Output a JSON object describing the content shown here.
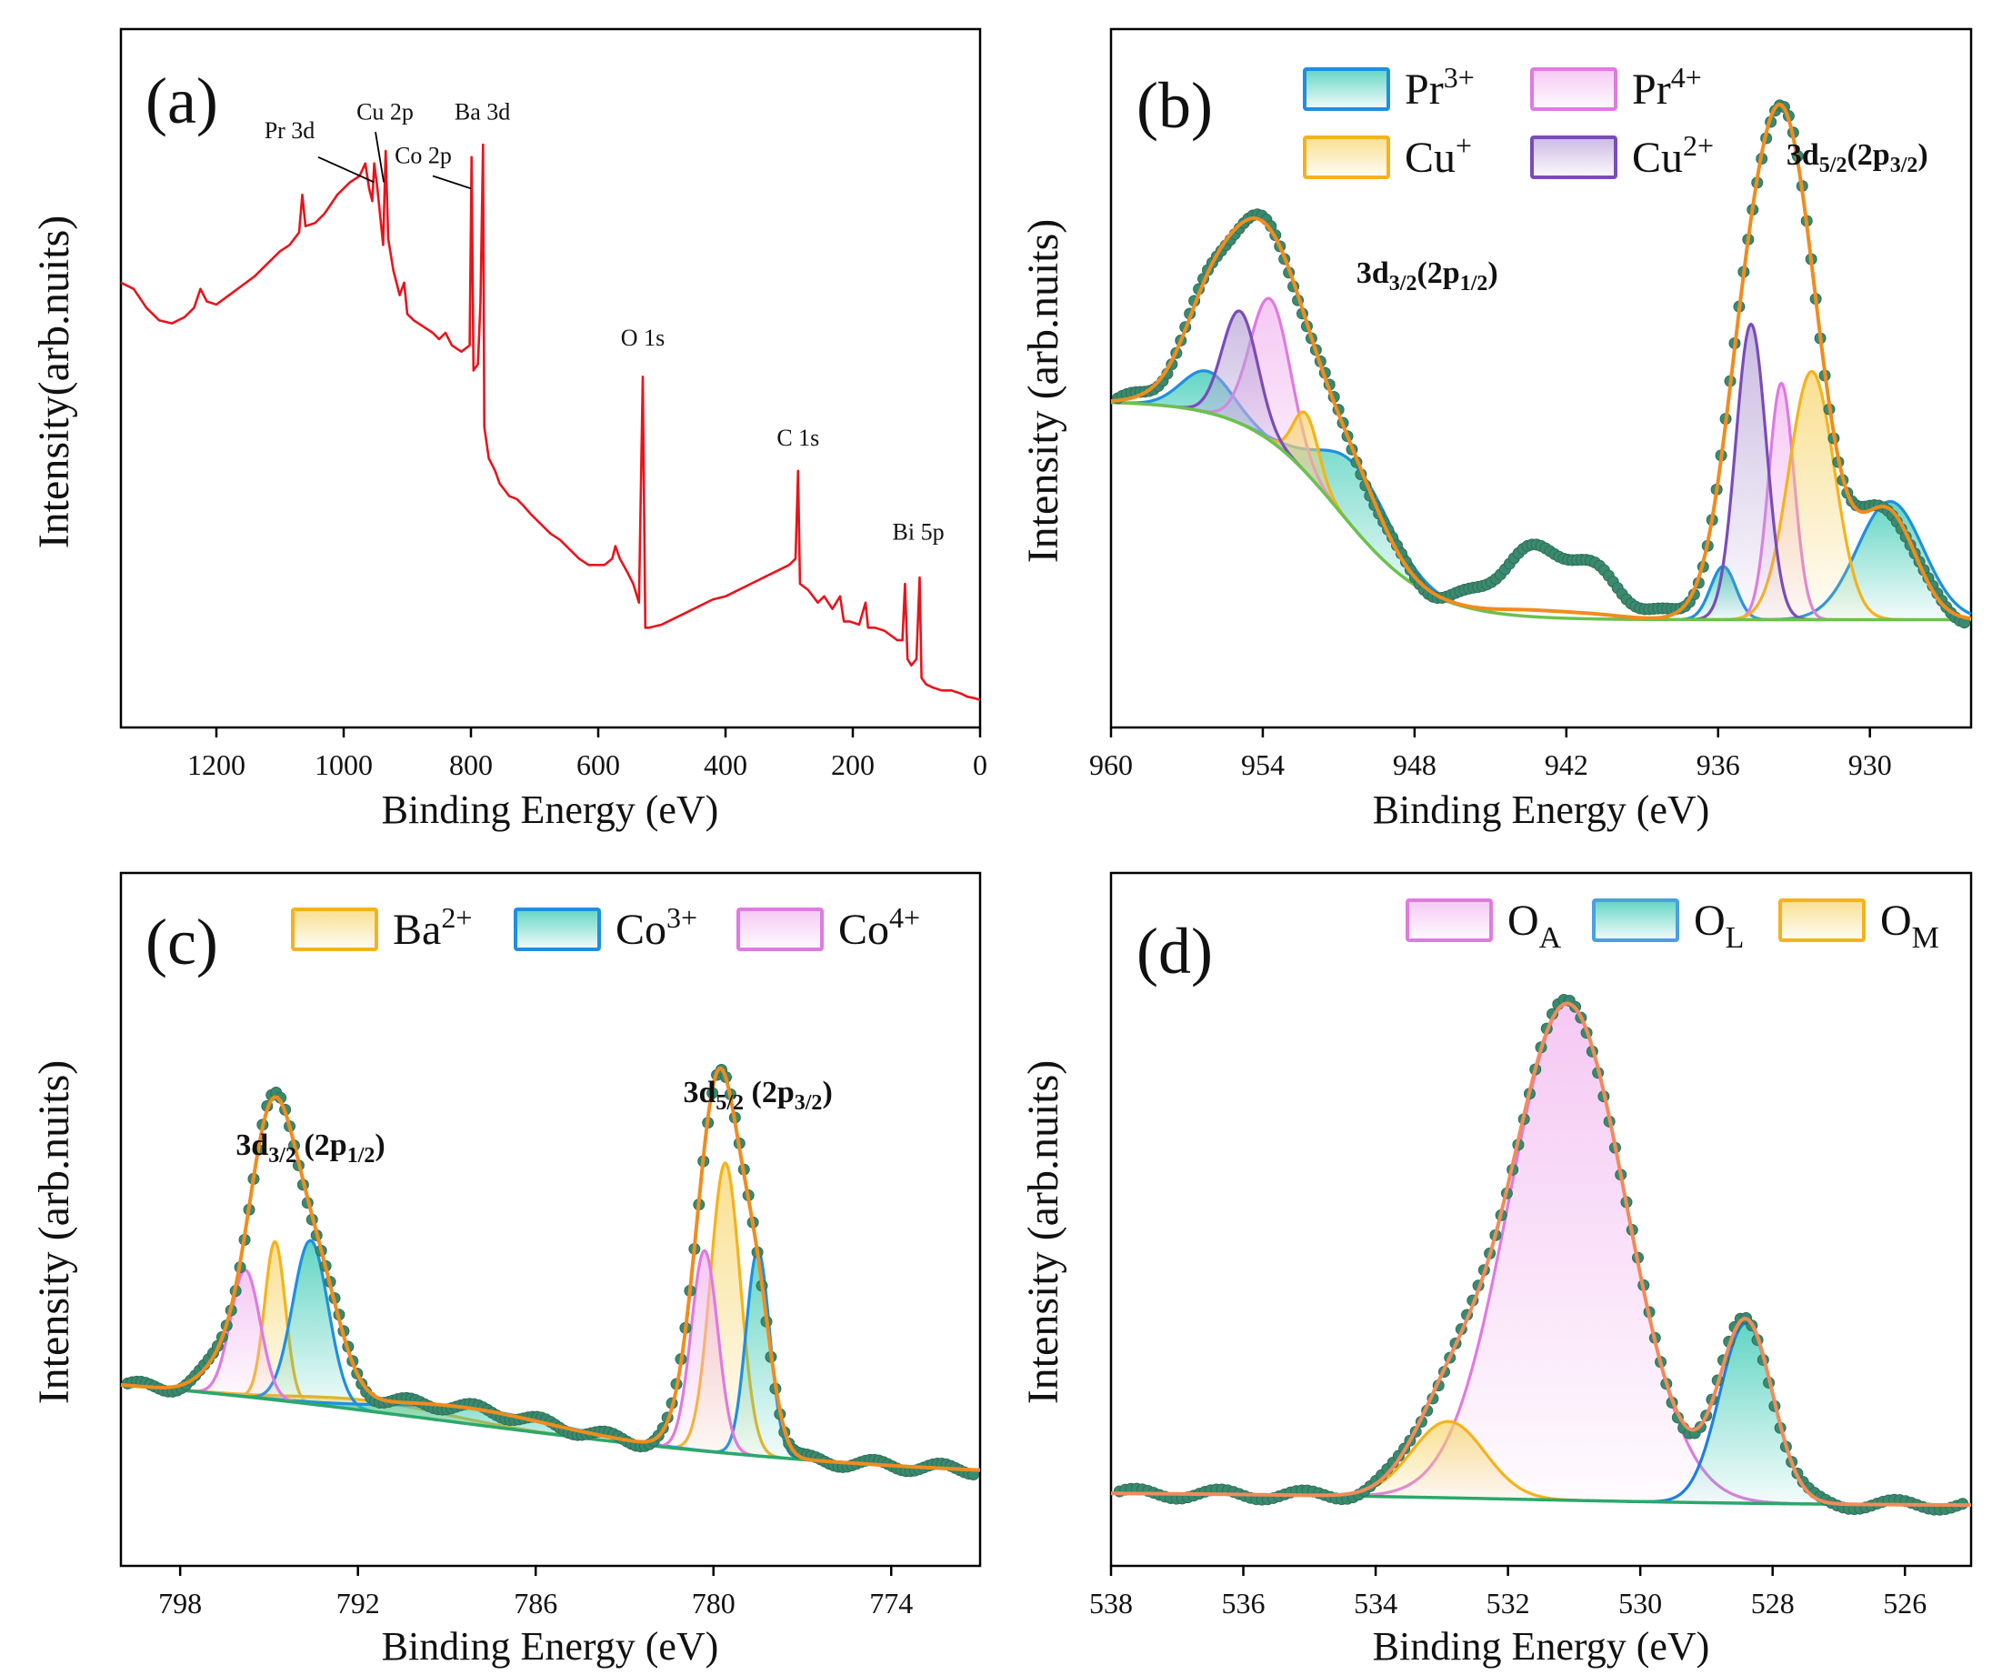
{
  "chart_data": [
    {
      "id": "a",
      "type": "line",
      "panel_label": "(a)",
      "xlabel": "Binding Energy (eV)",
      "ylabel": "Intensity(arb.nuits)",
      "xlim": [
        1350,
        0
      ],
      "ylim": [
        0,
        100
      ],
      "xticks": [
        1200,
        1000,
        800,
        600,
        400,
        200,
        0
      ],
      "series": [
        {
          "color": "#e8141c",
          "points": [
            [
              1350,
              68
            ],
            [
              1330,
              67
            ],
            [
              1310,
              64
            ],
            [
              1290,
              62
            ],
            [
              1270,
              61.5
            ],
            [
              1250,
              62.5
            ],
            [
              1235,
              64
            ],
            [
              1225,
              67
            ],
            [
              1215,
              65
            ],
            [
              1200,
              64.5
            ],
            [
              1180,
              66
            ],
            [
              1160,
              67.5
            ],
            [
              1140,
              69
            ],
            [
              1120,
              71
            ],
            [
              1100,
              73
            ],
            [
              1085,
              74
            ],
            [
              1070,
              76
            ],
            [
              1065,
              82
            ],
            [
              1060,
              77
            ],
            [
              1045,
              77.5
            ],
            [
              1030,
              79
            ],
            [
              1010,
              82
            ],
            [
              990,
              84
            ],
            [
              975,
              85
            ],
            [
              966,
              87
            ],
            [
              960,
              83
            ],
            [
              955,
              81
            ],
            [
              952,
              87
            ],
            [
              947,
              83
            ],
            [
              942,
              78
            ],
            [
              938,
              74
            ],
            [
              934,
              89
            ],
            [
              930,
              75
            ],
            [
              922,
              70
            ],
            [
              912,
              66
            ],
            [
              905,
              68
            ],
            [
              900,
              63
            ],
            [
              890,
              62
            ],
            [
              875,
              61
            ],
            [
              860,
              60
            ],
            [
              850,
              59
            ],
            [
              840,
              60
            ],
            [
              830,
              58
            ],
            [
              815,
              57
            ],
            [
              802,
              58
            ],
            [
              799,
              88
            ],
            [
              796,
              54
            ],
            [
              789,
              55
            ],
            [
              785,
              65
            ],
            [
              781,
              90
            ],
            [
              779,
              45
            ],
            [
              772,
              40
            ],
            [
              762,
              38
            ],
            [
              755,
              36
            ],
            [
              740,
              34
            ],
            [
              728,
              33.5
            ],
            [
              718,
              32.5
            ],
            [
              705,
              31
            ],
            [
              695,
              30
            ],
            [
              675,
              28
            ],
            [
              660,
              27
            ],
            [
              645,
              25.5
            ],
            [
              630,
              24
            ],
            [
              615,
              23
            ],
            [
              600,
              23
            ],
            [
              590,
              23
            ],
            [
              578,
              24
            ],
            [
              573,
              26
            ],
            [
              566,
              24
            ],
            [
              555,
              22
            ],
            [
              545,
              20
            ],
            [
              536,
              17
            ],
            [
              530,
              53
            ],
            [
              526,
              13
            ],
            [
              520,
              13
            ],
            [
              500,
              13.5
            ],
            [
              480,
              14.5
            ],
            [
              460,
              15.5
            ],
            [
              440,
              16.5
            ],
            [
              420,
              17.5
            ],
            [
              400,
              18
            ],
            [
              380,
              19
            ],
            [
              360,
              20
            ],
            [
              340,
              21
            ],
            [
              320,
              22
            ],
            [
              300,
              23
            ],
            [
              290,
              24
            ],
            [
              286,
              38
            ],
            [
              283,
              20
            ],
            [
              270,
              19
            ],
            [
              255,
              17
            ],
            [
              245,
              18
            ],
            [
              232,
              16
            ],
            [
              220,
              18
            ],
            [
              214,
              14
            ],
            [
              205,
              14
            ],
            [
              190,
              13.5
            ],
            [
              180,
              17
            ],
            [
              176,
              13
            ],
            [
              165,
              13
            ],
            [
              150,
              12.5
            ],
            [
              130,
              11
            ],
            [
              122,
              11
            ],
            [
              118,
              20
            ],
            [
              114,
              8
            ],
            [
              108,
              7
            ],
            [
              100,
              8
            ],
            [
              95,
              21
            ],
            [
              92,
              5
            ],
            [
              85,
              4
            ],
            [
              75,
              3.5
            ],
            [
              60,
              3
            ],
            [
              45,
              3
            ],
            [
              30,
              2.5
            ],
            [
              20,
              2
            ],
            [
              10,
              1.8
            ],
            [
              0,
              1.5
            ]
          ]
        }
      ],
      "annotations": [
        {
          "text": "Pr 3d",
          "x": 1085,
          "y": 91
        },
        {
          "text": "Cu 2p",
          "x": 935,
          "y": 94
        },
        {
          "text": "Co 2p",
          "x": 875,
          "y": 87
        },
        {
          "text": "Ba 3d",
          "x": 782,
          "y": 94
        },
        {
          "text": "O 1s",
          "x": 530,
          "y": 58
        },
        {
          "text": "C 1s",
          "x": 286,
          "y": 42
        },
        {
          "text": "Bi 5p",
          "x": 97,
          "y": 27
        }
      ]
    },
    {
      "id": "b",
      "type": "line",
      "panel_label": "(b)",
      "xlabel": "Binding Energy (eV)",
      "ylabel": "Intensity (arb.nuits)",
      "xlim": [
        960,
        926
      ],
      "ylim": [
        0,
        100
      ],
      "xticks": [
        960,
        954,
        948,
        942,
        936,
        930
      ],
      "legend_position": "top",
      "legend": [
        {
          "label": "Pr",
          "sup": "3+",
          "stroke": "#1f8fe0",
          "fill": "#2ec7b0"
        },
        {
          "label": "Pr",
          "sup": "4+",
          "stroke": "#e07ae0",
          "fill": "#f2b6f0"
        },
        {
          "label": "Cu",
          "sup": "+",
          "stroke": "#f5b21c",
          "fill": "#f7d56b"
        },
        {
          "label": "Cu",
          "sup": "2+",
          "stroke": "#7a4cb8",
          "fill": "#b9a4d8"
        }
      ],
      "annotations": [
        {
          "main": "3d",
          "sub": "5/2",
          "main2": "(2p",
          "sub2": "3/2",
          "end": ")",
          "x": 930.5,
          "y": 86
        },
        {
          "main": "3d",
          "sub": "3/2",
          "main2": "(2p",
          "sub2": "1/2",
          "end": ")",
          "x": 947.5,
          "y": 66
        }
      ],
      "baseline": {
        "color": "#6ac24b",
        "low": 9,
        "high": 46,
        "center": 951,
        "width": 1.8
      },
      "components": [
        {
          "name": "Pr3+",
          "stroke": "#1f8fe0",
          "fill": "#2ec7b0",
          "peaks": [
            [
              956.2,
              7,
              1.0
            ],
            [
              950.3,
              11,
              1.4
            ],
            [
              935.8,
              9,
              0.5
            ],
            [
              929.2,
              20,
              1.3
            ]
          ]
        },
        {
          "name": "Pr4+",
          "stroke": "#e07ae0",
          "fill": "#f2b6f0",
          "peaks": [
            [
              953.7,
              24,
              0.8
            ],
            [
              933.5,
              40,
              0.5
            ]
          ]
        },
        {
          "name": "Cu+",
          "stroke": "#f5b21c",
          "fill": "#f7d56b",
          "peaks": [
            [
              952.3,
              10,
              0.5
            ],
            [
              932.3,
              42,
              0.9
            ]
          ]
        },
        {
          "name": "Cu2+",
          "stroke": "#7a4cb8",
          "fill": "#b9a4d8",
          "peaks": [
            [
              954.9,
              19,
              0.7
            ],
            [
              934.7,
              50,
              0.6
            ]
          ]
        }
      ],
      "envelope": {
        "color": "#f08c1e",
        "peaks": [
          [
            954.0,
            36,
            1.9
          ],
          [
            950.3,
            7,
            1.2
          ],
          [
            933.5,
            86,
            1.4
          ],
          [
            935.2,
            10,
            0.8
          ],
          [
            929.3,
            18,
            1.1
          ],
          [
            956.3,
            5,
            0.9
          ]
        ]
      },
      "raw": {
        "color": "#3a8a6e",
        "extra": [
          [
            943.5,
            10,
            1.4
          ],
          [
            941.0,
            7,
            1.3
          ]
        ]
      }
    },
    {
      "id": "c",
      "type": "line",
      "panel_label": "(c)",
      "xlabel": "Binding Energy (eV)",
      "ylabel": "Intensity (arb.nuits)",
      "xlim": [
        800,
        771
      ],
      "ylim": [
        0,
        100
      ],
      "xticks": [
        798,
        792,
        786,
        780,
        774
      ],
      "legend_position": "top",
      "legend": [
        {
          "label": "Ba",
          "sup": "2+",
          "stroke": "#f5b21c",
          "fill": "#f7d56b"
        },
        {
          "label": "Co",
          "sup": "3+",
          "stroke": "#1f8fe0",
          "fill": "#2ec7b0"
        },
        {
          "label": "Co",
          "sup": "4+",
          "stroke": "#e07ae0",
          "fill": "#f2b6f0"
        }
      ],
      "annotations": [
        {
          "main": "3d",
          "sub": "5/2",
          "main2": " (2p",
          "sub2": "3/2",
          "end": ")",
          "x": 778.5,
          "y": 79
        },
        {
          "main": "3d",
          "sub": "3/2",
          "main2": " (2p",
          "sub2": "1/2",
          "end": ")",
          "x": 793.6,
          "y": 69
        }
      ],
      "baseline": {
        "color": "#2aa86a",
        "low": 7,
        "high": 30,
        "center": 789,
        "width": 8
      },
      "components": [
        {
          "name": "Ba2+",
          "stroke": "#f5b21c",
          "fill": "#f7d56b",
          "peaks": [
            [
              794.8,
              30,
              0.35
            ],
            [
              779.6,
              55,
              0.5
            ],
            [
              791.5,
              2,
              2.5
            ]
          ]
        },
        {
          "name": "Co3+",
          "stroke": "#1f8fe0",
          "fill": "#2ec7b0",
          "peaks": [
            [
              793.6,
              31,
              0.6
            ],
            [
              778.5,
              39,
              0.4
            ],
            [
              788.0,
              3,
              2.8
            ]
          ]
        },
        {
          "name": "Co4+",
          "stroke": "#e07ae0",
          "fill": "#f2b6f0",
          "peaks": [
            [
              795.8,
              24,
              0.5
            ],
            [
              780.3,
              38,
              0.45
            ]
          ]
        }
      ],
      "envelope": {
        "color": "#f08c1e",
        "peaks": [
          [
            794.9,
            52,
            0.8
          ],
          [
            793.4,
            23,
            0.8
          ],
          [
            779.8,
            72,
            0.75
          ],
          [
            778.5,
            22,
            0.5
          ],
          [
            796.5,
            5,
            0.8
          ],
          [
            788.5,
            3,
            3.0
          ]
        ]
      },
      "raw": {
        "color": "#3a8a6e",
        "extra": []
      }
    },
    {
      "id": "d",
      "type": "line",
      "panel_label": "(d)",
      "xlabel": "Binding Energy (eV)",
      "ylabel": "Intensity (arb.nuits)",
      "xlim": [
        538,
        525
      ],
      "ylim": [
        0,
        100
      ],
      "xticks": [
        538,
        536,
        534,
        532,
        530,
        528,
        526
      ],
      "legend_position": "top-right",
      "legend": [
        {
          "label": "O",
          "sub": "A",
          "stroke": "#e07ae0",
          "fill": "#f2b6f0"
        },
        {
          "label": "O",
          "sub": "L",
          "stroke": "#4aa0e0",
          "fill": "#2ec7b0"
        },
        {
          "label": "O",
          "sub": "M",
          "stroke": "#f5b21c",
          "fill": "#f7d56b"
        }
      ],
      "annotations": [],
      "baseline": {
        "color": "#2aa86a",
        "low": 4,
        "high": 6.5,
        "center": 532,
        "width": 2.5
      },
      "components": [
        {
          "name": "OA",
          "stroke": "#e07ae0",
          "fill": "#f2b6f0",
          "peaks": [
            [
              531.1,
              91,
              0.88
            ]
          ]
        },
        {
          "name": "OL",
          "stroke": "#1f7fe0",
          "fill": "#2ec7b0",
          "peaks": [
            [
              528.4,
              33,
              0.4
            ]
          ]
        },
        {
          "name": "OM",
          "stroke": "#f5b21c",
          "fill": "#f7d56b",
          "peaks": [
            [
              532.9,
              14,
              0.55
            ]
          ]
        }
      ],
      "envelope": {
        "color": "#f08c5a",
        "peaks": [
          [
            531.1,
            91,
            0.88
          ],
          [
            528.4,
            33,
            0.4
          ],
          [
            532.9,
            14,
            0.55
          ]
        ]
      },
      "raw": {
        "color": "#3a8a6e",
        "extra": []
      }
    }
  ]
}
